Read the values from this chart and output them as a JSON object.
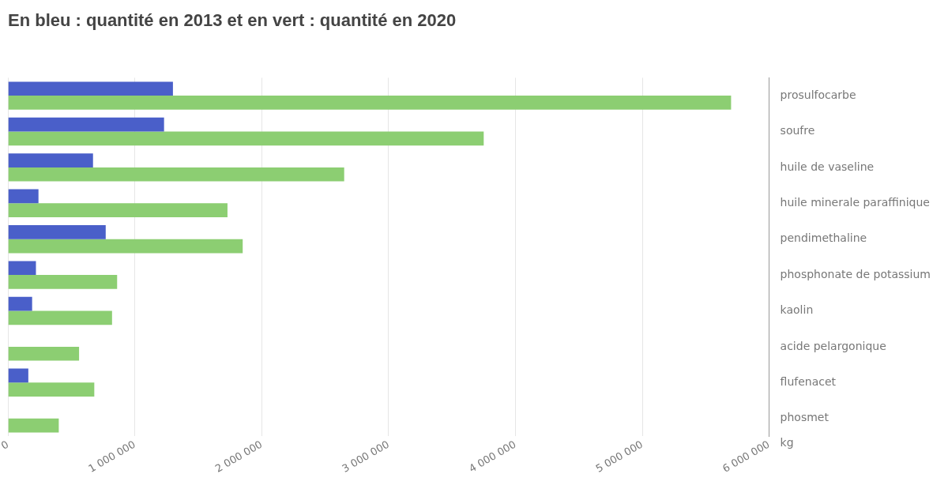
{
  "chart_data": {
    "type": "bar",
    "orientation": "horizontal",
    "title": "En bleu : quantité en 2013 et en vert : quantité en 2020",
    "xlabel": "kg",
    "categories": [
      "prosulfocarbe",
      "soufre",
      "huile de vaseline",
      "huile minerale paraffinique",
      "pendimethaline",
      "phosphonate de potassium",
      "kaolin",
      "acide pelargonique",
      "flufenacet",
      "phosmet"
    ],
    "series": [
      {
        "color": "#4a5fc9",
        "values": [
          1300000,
          1230000,
          670000,
          240000,
          770000,
          220000,
          190000,
          0,
          160000,
          0
        ]
      },
      {
        "color": "#8cce72",
        "values": [
          5700000,
          3750000,
          2650000,
          1730000,
          1850000,
          860000,
          820000,
          560000,
          680000,
          400000
        ]
      }
    ],
    "xlim": [
      0,
      6000000
    ],
    "xticks": [
      0,
      {
        "value": 1000000,
        "label": "1 000 000"
      },
      {
        "value": 2000000,
        "label": "2 000 000"
      },
      {
        "value": 3000000,
        "label": "3 000 000"
      },
      {
        "value": 4000000,
        "label": "4 000 000"
      },
      {
        "value": 5000000,
        "label": "5 000 000"
      },
      {
        "value": 6000000,
        "label": "6 000 000"
      }
    ],
    "grid": "x",
    "legend": false
  }
}
